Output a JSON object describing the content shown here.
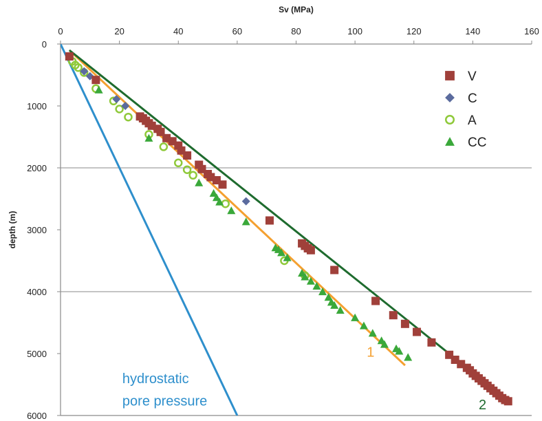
{
  "chart_data": {
    "type": "scatter",
    "title": "",
    "xlabel": "Sv (MPa)",
    "ylabel": "depth (m)",
    "xaxis_position": "top",
    "yaxis_inverted": true,
    "xlim": [
      0,
      160
    ],
    "ylim": [
      0,
      6000
    ],
    "xticks": [
      "0",
      "20",
      "40",
      "60",
      "80",
      "100",
      "120",
      "140",
      "160"
    ],
    "yticks": [
      "0",
      "1000",
      "2000",
      "3000",
      "4000",
      "5000",
      "6000"
    ],
    "grid": "horizontal major gridlines at 2000 and 4000",
    "legend": "top-right",
    "colors": {
      "V": "#a0403a",
      "C": "#5b6b9e",
      "A": "#8fc93a",
      "CC": "#3aa83a",
      "line_1": "#f4a030",
      "line_2": "#1e6b2e",
      "hydrostatic": "#2e8fcc"
    },
    "series": [
      {
        "name": "V",
        "marker": "square",
        "x": [
          3,
          12,
          27,
          28,
          29,
          30,
          31,
          33,
          34,
          36,
          38,
          40,
          41,
          43,
          47,
          48,
          50,
          51,
          53,
          55,
          71,
          82,
          83,
          84,
          85,
          93,
          107,
          113,
          117,
          121,
          126,
          132,
          134,
          136,
          138,
          139,
          140,
          141,
          142,
          143,
          144,
          145,
          146,
          147,
          148,
          149,
          150,
          151,
          152
        ],
        "y": [
          200,
          580,
          1170,
          1200,
          1240,
          1280,
          1320,
          1370,
          1420,
          1520,
          1570,
          1640,
          1720,
          1800,
          1950,
          2020,
          2100,
          2150,
          2200,
          2270,
          2850,
          3220,
          3260,
          3300,
          3330,
          3650,
          4150,
          4380,
          4520,
          4650,
          4820,
          5020,
          5100,
          5170,
          5230,
          5270,
          5320,
          5360,
          5400,
          5440,
          5480,
          5520,
          5560,
          5600,
          5640,
          5680,
          5720,
          5750,
          5770
        ]
      },
      {
        "name": "C",
        "marker": "diamond",
        "x": [
          8,
          10,
          19,
          22,
          63
        ],
        "y": [
          440,
          520,
          890,
          1000,
          2540
        ]
      },
      {
        "name": "A",
        "marker": "ring",
        "x": [
          4,
          5,
          6,
          8,
          12,
          18,
          20,
          23,
          30,
          35,
          40,
          43,
          45,
          56,
          76,
          83
        ],
        "y": [
          280,
          340,
          380,
          460,
          720,
          920,
          1050,
          1180,
          1460,
          1660,
          1920,
          2030,
          2120,
          2580,
          3500,
          3740
        ]
      },
      {
        "name": "CC",
        "marker": "triangle",
        "x": [
          13,
          30,
          47,
          52,
          53,
          54,
          58,
          63,
          73,
          74,
          75,
          77,
          82,
          83,
          85,
          87,
          89,
          91,
          92,
          93,
          95,
          100,
          103,
          106,
          109,
          110,
          114,
          115,
          118
        ],
        "y": [
          740,
          1520,
          2240,
          2410,
          2480,
          2550,
          2690,
          2870,
          3290,
          3320,
          3370,
          3450,
          3700,
          3760,
          3830,
          3910,
          4000,
          4090,
          4170,
          4220,
          4300,
          4420,
          4550,
          4670,
          4790,
          4850,
          4920,
          4960,
          5060
        ]
      }
    ],
    "lines": [
      {
        "name": "1",
        "color_key": "line_1",
        "x": [
          3,
          117
        ],
        "y": [
          100,
          5190
        ]
      },
      {
        "name": "2",
        "color_key": "line_2",
        "x": [
          3,
          153
        ],
        "y": [
          100,
          5800
        ]
      },
      {
        "name": "hydrostatic",
        "color_key": "hydrostatic",
        "x": [
          0,
          60
        ],
        "y": [
          0,
          6000
        ]
      }
    ],
    "annotations": [
      {
        "id": "line1",
        "text": "1",
        "x": 104,
        "y": 5050,
        "color_key": "line_1"
      },
      {
        "id": "line2",
        "text": "2",
        "x": 142,
        "y": 5900,
        "color_key": "line_2"
      },
      {
        "id": "hydro1",
        "text": "hydrostatic",
        "x": 21,
        "y": 5480,
        "color_key": "hydrostatic"
      },
      {
        "id": "hydro2",
        "text": "pore pressure",
        "x": 21,
        "y": 5840,
        "color_key": "hydrostatic"
      }
    ]
  }
}
